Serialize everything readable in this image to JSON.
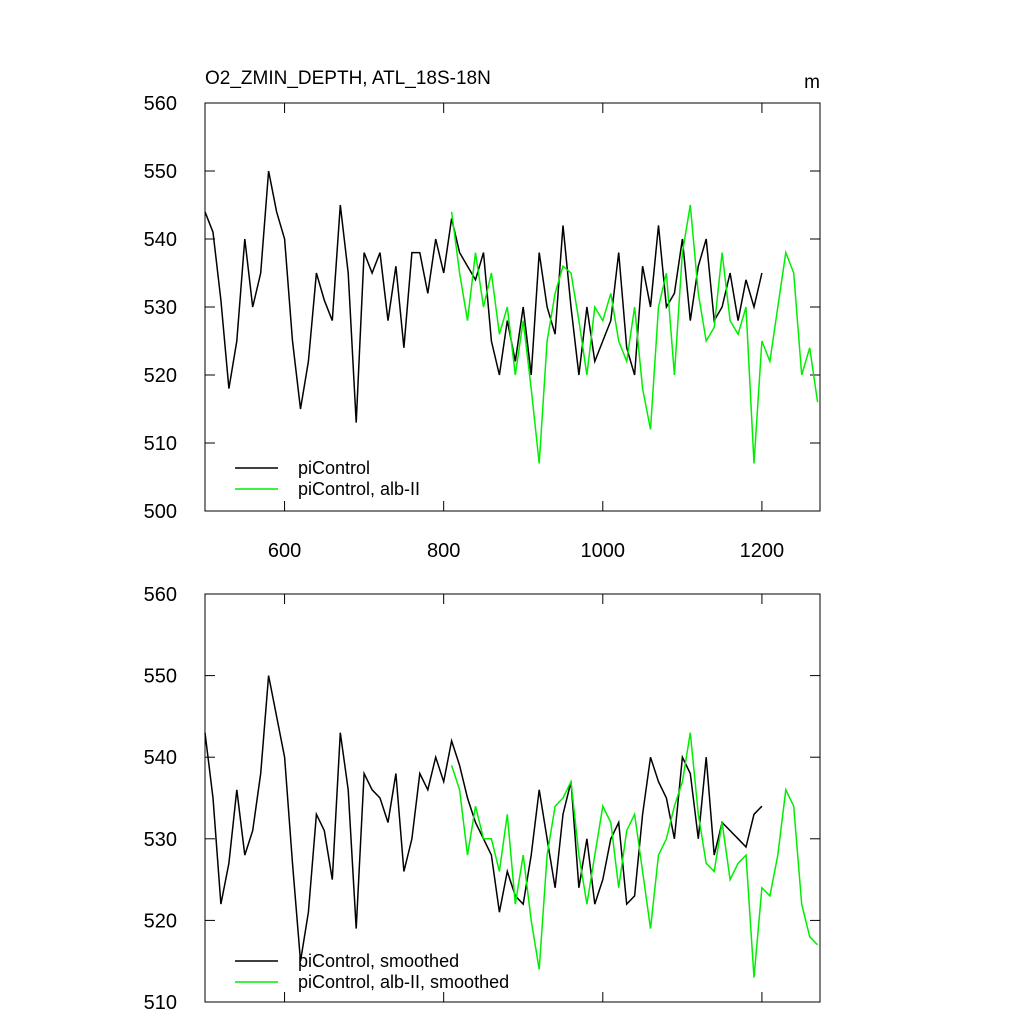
{
  "chart_data": [
    {
      "type": "line",
      "title": "O2_ZMIN_DEPTH, ATL_18S-18N",
      "units_label": "m",
      "x": [
        500,
        510,
        520,
        530,
        540,
        550,
        560,
        570,
        580,
        590,
        600,
        610,
        620,
        630,
        640,
        650,
        660,
        670,
        680,
        690,
        700,
        710,
        720,
        730,
        740,
        750,
        760,
        770,
        780,
        790,
        800,
        810,
        820,
        830,
        840,
        850,
        860,
        870,
        880,
        890,
        900,
        910,
        920,
        930,
        940,
        950,
        960,
        970,
        980,
        990,
        1000,
        1010,
        1020,
        1030,
        1040,
        1050,
        1060,
        1070,
        1080,
        1090,
        1100,
        1110,
        1120,
        1130,
        1140,
        1150,
        1160,
        1170,
        1180,
        1190,
        1200,
        1210,
        1220,
        1230,
        1240,
        1250,
        1260,
        1270
      ],
      "series": [
        {
          "name": "piControl",
          "color": "#000000",
          "values": [
            544,
            541,
            531,
            518,
            525,
            540,
            530,
            535,
            550,
            544,
            540,
            525,
            515,
            522,
            535,
            531,
            528,
            545,
            535,
            513,
            538,
            535,
            538,
            528,
            536,
            524,
            538,
            538,
            532,
            540,
            535,
            543,
            538,
            536,
            534,
            538,
            525,
            520,
            528,
            522,
            530,
            520,
            538,
            530,
            526,
            542,
            530,
            520,
            530,
            522,
            525,
            528,
            538,
            524,
            520,
            536,
            530,
            542,
            530,
            532,
            540,
            528,
            536,
            540,
            528,
            530,
            535,
            528,
            534,
            530,
            535,
            null,
            null,
            null,
            null,
            null,
            null,
            null
          ]
        },
        {
          "name": "piControl, alb-II",
          "color": "#00ee00",
          "values": [
            null,
            null,
            null,
            null,
            null,
            null,
            null,
            null,
            null,
            null,
            null,
            null,
            null,
            null,
            null,
            null,
            null,
            null,
            null,
            null,
            null,
            null,
            null,
            null,
            null,
            null,
            null,
            null,
            null,
            null,
            null,
            544,
            535,
            528,
            538,
            530,
            535,
            526,
            530,
            520,
            528,
            518,
            507,
            525,
            532,
            536,
            535,
            528,
            520,
            530,
            528,
            532,
            525,
            522,
            530,
            518,
            512,
            530,
            535,
            520,
            538,
            545,
            532,
            525,
            527,
            538,
            528,
            526,
            530,
            507,
            525,
            522,
            530,
            538,
            535,
            520,
            524,
            516
          ]
        }
      ],
      "xlim": [
        500,
        1273
      ],
      "ylim": [
        500,
        560
      ],
      "xticks": [
        600,
        800,
        1000,
        1200
      ],
      "yticks": [
        500,
        510,
        520,
        530,
        540,
        550,
        560
      ]
    },
    {
      "type": "line",
      "x": [
        500,
        510,
        520,
        530,
        540,
        550,
        560,
        570,
        580,
        590,
        600,
        610,
        620,
        630,
        640,
        650,
        660,
        670,
        680,
        690,
        700,
        710,
        720,
        730,
        740,
        750,
        760,
        770,
        780,
        790,
        800,
        810,
        820,
        830,
        840,
        850,
        860,
        870,
        880,
        890,
        900,
        910,
        920,
        930,
        940,
        950,
        960,
        970,
        980,
        990,
        1000,
        1010,
        1020,
        1030,
        1040,
        1050,
        1060,
        1070,
        1080,
        1090,
        1100,
        1110,
        1120,
        1130,
        1140,
        1150,
        1160,
        1170,
        1180,
        1190,
        1200,
        1210,
        1220,
        1230,
        1240,
        1250,
        1260,
        1270
      ],
      "series": [
        {
          "name": "piControl, smoothed",
          "color": "#000000",
          "values": [
            543,
            535,
            522,
            527,
            536,
            528,
            531,
            538,
            550,
            545,
            540,
            527,
            515,
            521,
            533,
            531,
            525,
            543,
            536,
            519,
            538,
            536,
            535,
            532,
            538,
            526,
            530,
            538,
            536,
            540,
            537,
            542,
            539,
            535,
            532,
            530,
            528,
            521,
            526,
            523,
            522,
            528,
            536,
            530,
            524,
            533,
            537,
            524,
            530,
            522,
            525,
            530,
            532,
            522,
            523,
            533,
            540,
            537,
            535,
            530,
            540,
            538,
            530,
            540,
            528,
            532,
            531,
            530,
            529,
            533,
            534,
            null,
            null,
            null,
            null,
            null,
            null,
            null
          ]
        },
        {
          "name": "piControl, alb-II, smoothed",
          "color": "#00ee00",
          "values": [
            null,
            null,
            null,
            null,
            null,
            null,
            null,
            null,
            null,
            null,
            null,
            null,
            null,
            null,
            null,
            null,
            null,
            null,
            null,
            null,
            null,
            null,
            null,
            null,
            null,
            null,
            null,
            null,
            null,
            null,
            null,
            539,
            536,
            528,
            534,
            530,
            530,
            526,
            533,
            522,
            528,
            520,
            514,
            528,
            534,
            535,
            537,
            528,
            522,
            528,
            534,
            532,
            524,
            531,
            533,
            526,
            519,
            528,
            530,
            534,
            537,
            543,
            533,
            527,
            526,
            532,
            525,
            527,
            528,
            513,
            524,
            523,
            528,
            536,
            534,
            522,
            518,
            517
          ]
        }
      ],
      "xlim": [
        500,
        1273
      ],
      "ylim": [
        510,
        560
      ],
      "yticks": [
        510,
        520,
        530,
        540,
        550,
        560
      ]
    }
  ]
}
